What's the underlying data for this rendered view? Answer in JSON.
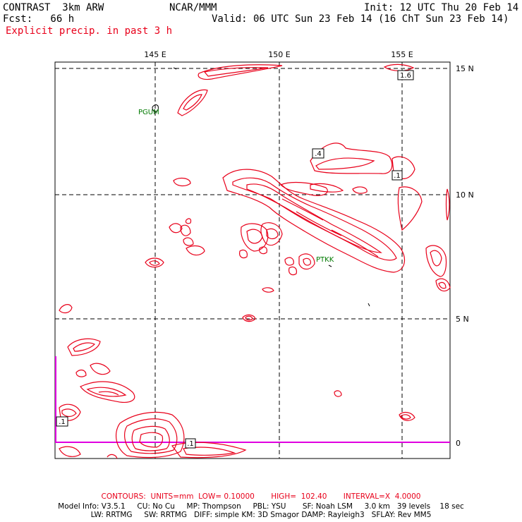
{
  "header": {
    "model": "CONTRAST  3km ARW",
    "forecast": "Fcst:   66 h",
    "org": "NCAR/MMM",
    "init": "Init: 12 UTC Thu 20 Feb 14",
    "valid": "Valid: 06 UTC Sun 23 Feb 14 (16 ChT Sun 23 Feb 14)",
    "field": "Explicit precip. in past 3 h"
  },
  "map": {
    "lon_labels": [
      "145 E",
      "150 E",
      "155 E"
    ],
    "lat_labels": [
      "15 N",
      "10 N",
      "5 N",
      "0"
    ],
    "stations": [
      "PGUM",
      "PTKK"
    ],
    "contour_labels": [
      "1.6",
      ".4",
      ".1",
      ".1",
      ".1"
    ],
    "colors": {
      "contour": "#e8001a",
      "station": "#007a00",
      "boundary": "#e000e0"
    }
  },
  "footer": {
    "contours": "CONTOURS:  UNITS=mm  LOW= 0.10000       HIGH=  102.40       INTERVAL=X  4.0000",
    "model_info_1": "Model Info: V3.5.1     CU: No Cu     MP: Thompson     PBL: YSU       SF: Noah LSM     3.0 km   39 levels    18 sec",
    "model_info_2": "LW: RRTMG     SW: RRTMG   DIFF: simple KM: 3D Smagor DAMP: Rayleigh3   SFLAY: Rev MM5"
  }
}
